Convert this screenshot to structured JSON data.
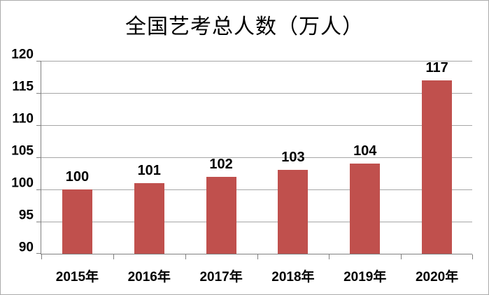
{
  "window": {
    "kind": "static-chart-image"
  },
  "chart_data": {
    "type": "bar",
    "title": "全国艺考总人数（万人）",
    "categories": [
      "2015年",
      "2016年",
      "2017年",
      "2018年",
      "2019年",
      "2020年"
    ],
    "values": [
      100,
      101,
      102,
      103,
      104,
      117
    ],
    "data_labels": [
      "100",
      "101",
      "102",
      "103",
      "104",
      "117"
    ],
    "xlabel": "",
    "ylabel": "",
    "ylim": [
      90,
      120
    ],
    "yticks": [
      90,
      95,
      100,
      105,
      110,
      115,
      120
    ],
    "grid": true,
    "legend": false,
    "legend_position": "none",
    "data_labels_shown": true
  },
  "colors": {
    "bar": "#c0504d",
    "gridline": "#a6a6a6",
    "axis": "#808080",
    "text": "#000000",
    "background": "#ffffff",
    "figure_border": "#ababab"
  }
}
